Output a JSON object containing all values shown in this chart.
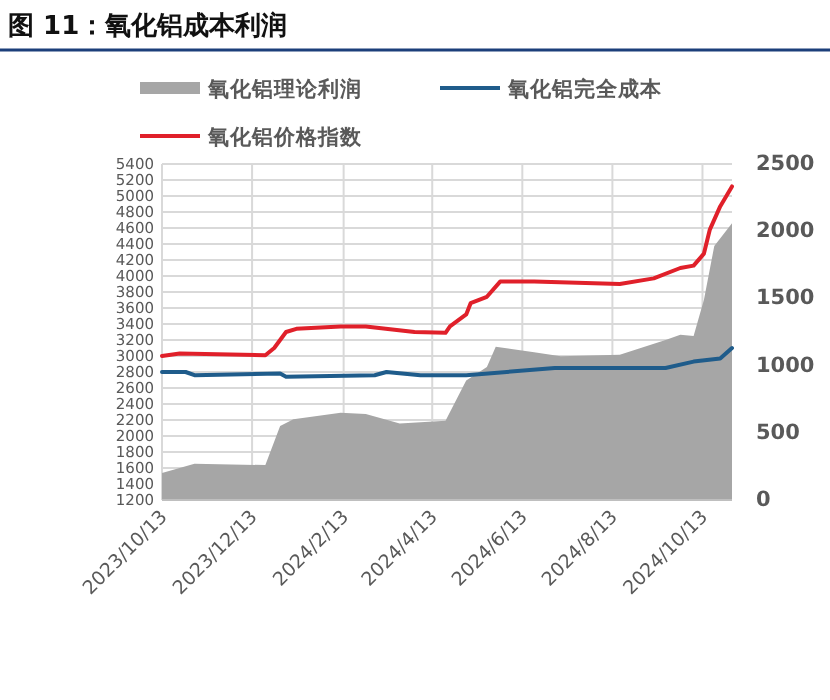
{
  "chart_data": {
    "type": "line",
    "title": "图 11：氧化铝成本利润",
    "legend": "top",
    "grid": true,
    "xlim": [
      "2023-10-13",
      "2024-11-02"
    ],
    "xticks": [
      {
        "value": "2023-10-13",
        "label": "2023/10/13"
      },
      {
        "value": "2023-12-13",
        "label": "2023/12/13"
      },
      {
        "value": "2024-02-13",
        "label": "2024/2/13"
      },
      {
        "value": "2024-04-13",
        "label": "2024/4/13"
      },
      {
        "value": "2024-06-13",
        "label": "2024/6/13"
      },
      {
        "value": "2024-08-13",
        "label": "2024/8/13"
      },
      {
        "value": "2024-10-13",
        "label": "2024/10/13"
      }
    ],
    "ylim": [
      1200,
      5400
    ],
    "yticks": [
      1200,
      1400,
      1600,
      1800,
      2000,
      2200,
      2400,
      2600,
      2800,
      3000,
      3200,
      3400,
      3600,
      3800,
      4000,
      4200,
      4400,
      4600,
      4800,
      5000,
      5200,
      5400
    ],
    "y2lim": [
      0,
      2500
    ],
    "y2ticks": [
      0,
      500,
      1000,
      1500,
      2000,
      2500
    ],
    "series": [
      {
        "name": "氧化铝理论利润",
        "type": "area",
        "axis": "y2",
        "color": "#a6a6a6",
        "x": [
          "2023-10-13",
          "2023-11-04",
          "2023-12-22",
          "2024-01-01",
          "2024-01-10",
          "2024-02-11",
          "2024-02-28",
          "2024-03-22",
          "2024-04-22",
          "2024-05-06",
          "2024-05-20",
          "2024-05-26",
          "2024-06-21",
          "2024-07-09",
          "2024-08-18",
          "2024-09-18",
          "2024-09-28",
          "2024-10-07",
          "2024-10-14",
          "2024-10-21",
          "2024-11-02"
        ],
        "values": [
          200,
          270,
          260,
          550,
          600,
          650,
          640,
          570,
          590,
          890,
          990,
          1140,
          1100,
          1070,
          1080,
          1190,
          1230,
          1220,
          1490,
          1890,
          2060
        ]
      },
      {
        "name": "氧化铝完全成本",
        "color": "#1f5c8b",
        "x": [
          "2023-10-13",
          "2023-10-29",
          "2023-11-04",
          "2024-01-01",
          "2024-01-05",
          "2024-03-05",
          "2024-03-13",
          "2024-04-05",
          "2024-05-06",
          "2024-07-05",
          "2024-09-18",
          "2024-10-07",
          "2024-10-25",
          "2024-11-02"
        ],
        "values": [
          2800,
          2800,
          2760,
          2780,
          2740,
          2760,
          2800,
          2760,
          2760,
          2850,
          2850,
          2930,
          2970,
          3100
        ]
      },
      {
        "name": "氧化铝价格指数",
        "color": "#e0202a",
        "x": [
          "2023-10-13",
          "2023-10-25",
          "2023-12-22",
          "2023-12-28",
          "2024-01-05",
          "2024-01-12",
          "2024-02-11",
          "2024-02-28",
          "2024-04-01",
          "2024-04-22",
          "2024-04-25",
          "2024-05-06",
          "2024-05-09",
          "2024-05-20",
          "2024-05-29",
          "2024-06-21",
          "2024-08-18",
          "2024-09-10",
          "2024-09-28",
          "2024-10-07",
          "2024-10-14",
          "2024-10-18",
          "2024-10-25",
          "2024-11-02"
        ],
        "values": [
          3000,
          3030,
          3010,
          3100,
          3300,
          3340,
          3370,
          3370,
          3300,
          3290,
          3370,
          3520,
          3660,
          3740,
          3930,
          3930,
          3900,
          3970,
          4100,
          4130,
          4280,
          4580,
          4870,
          5120
        ]
      }
    ]
  }
}
